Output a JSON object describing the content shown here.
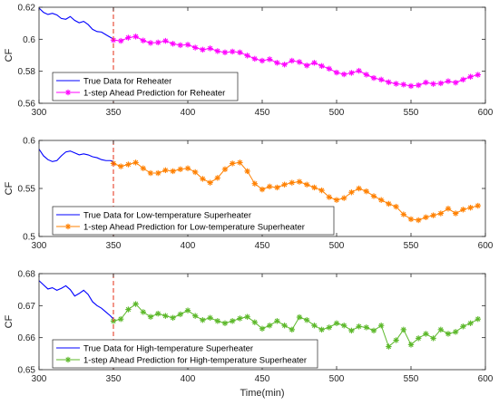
{
  "chart_data": [
    {
      "type": "line",
      "xlabel": "",
      "ylabel": "CF",
      "xlim": [
        300,
        600
      ],
      "ylim": [
        0.56,
        0.62
      ],
      "xticks": [
        "300",
        "350",
        "400",
        "450",
        "500",
        "550",
        "600"
      ],
      "yticks": [
        "0.56",
        "0.58",
        "0.6",
        "0.62"
      ],
      "split_x": 350,
      "legend_position": "bottom-left",
      "series": [
        {
          "name": "True Data for Reheater",
          "color": "#0000ff",
          "marker": "none",
          "points": [
            [
              300,
              0.6195
            ],
            [
              303,
              0.6168
            ],
            [
              306,
              0.6155
            ],
            [
              309,
              0.6162
            ],
            [
              312,
              0.6152
            ],
            [
              315,
              0.613
            ],
            [
              318,
              0.6125
            ],
            [
              321,
              0.6142
            ],
            [
              324,
              0.6118
            ],
            [
              327,
              0.6103
            ],
            [
              330,
              0.6112
            ],
            [
              333,
              0.6092
            ],
            [
              336,
              0.6062
            ],
            [
              339,
              0.6048
            ],
            [
              342,
              0.6045
            ],
            [
              345,
              0.6028
            ],
            [
              348,
              0.6012
            ],
            [
              350,
              0.6002
            ]
          ]
        },
        {
          "name": "1-step Ahead Prediction for Reheater",
          "color": "#ff00ff",
          "marker": "asterisk",
          "points": [
            [
              350,
              0.5995
            ],
            [
              355,
              0.599
            ],
            [
              360,
              0.601
            ],
            [
              365,
              0.6017
            ],
            [
              370,
              0.5992
            ],
            [
              375,
              0.5977
            ],
            [
              380,
              0.598
            ],
            [
              385,
              0.599
            ],
            [
              390,
              0.5972
            ],
            [
              395,
              0.5963
            ],
            [
              400,
              0.5966
            ],
            [
              405,
              0.5948
            ],
            [
              410,
              0.5935
            ],
            [
              415,
              0.5943
            ],
            [
              420,
              0.5926
            ],
            [
              425,
              0.5918
            ],
            [
              430,
              0.5923
            ],
            [
              435,
              0.5918
            ],
            [
              440,
              0.5898
            ],
            [
              445,
              0.5878
            ],
            [
              450,
              0.5866
            ],
            [
              455,
              0.5875
            ],
            [
              460,
              0.5853
            ],
            [
              465,
              0.5842
            ],
            [
              470,
              0.5866
            ],
            [
              475,
              0.5858
            ],
            [
              480,
              0.5836
            ],
            [
              485,
              0.5853
            ],
            [
              490,
              0.5833
            ],
            [
              495,
              0.5816
            ],
            [
              500,
              0.5792
            ],
            [
              505,
              0.5781
            ],
            [
              510,
              0.579
            ],
            [
              515,
              0.5803
            ],
            [
              520,
              0.5779
            ],
            [
              525,
              0.5758
            ],
            [
              530,
              0.5748
            ],
            [
              535,
              0.5732
            ],
            [
              540,
              0.5722
            ],
            [
              545,
              0.5717
            ],
            [
              550,
              0.5708
            ],
            [
              555,
              0.5713
            ],
            [
              560,
              0.573
            ],
            [
              565,
              0.5721
            ],
            [
              570,
              0.5725
            ],
            [
              575,
              0.5738
            ],
            [
              580,
              0.5729
            ],
            [
              585,
              0.5748
            ],
            [
              590,
              0.5766
            ],
            [
              595,
              0.5778
            ]
          ]
        }
      ]
    },
    {
      "type": "line",
      "xlabel": "",
      "ylabel": "CF",
      "xlim": [
        300,
        600
      ],
      "ylim": [
        0.5,
        0.6
      ],
      "xticks": [
        "300",
        "350",
        "400",
        "450",
        "500",
        "550",
        "600"
      ],
      "yticks": [
        "0.5",
        "0.55",
        "0.6"
      ],
      "split_x": 350,
      "legend_position": "bottom-left",
      "series": [
        {
          "name": "True Data for Low-temperature Superheater",
          "color": "#0000ff",
          "marker": "none",
          "points": [
            [
              300,
              0.591
            ],
            [
              303,
              0.584
            ],
            [
              306,
              0.58
            ],
            [
              309,
              0.578
            ],
            [
              312,
              0.579
            ],
            [
              315,
              0.584
            ],
            [
              318,
              0.588
            ],
            [
              321,
              0.589
            ],
            [
              324,
              0.587
            ],
            [
              327,
              0.585
            ],
            [
              330,
              0.586
            ],
            [
              333,
              0.585
            ],
            [
              336,
              0.583
            ],
            [
              339,
              0.582
            ],
            [
              342,
              0.58
            ],
            [
              345,
              0.579
            ],
            [
              348,
              0.579
            ],
            [
              350,
              0.578
            ]
          ]
        },
        {
          "name": "1-step Ahead Prediction for Low-temperature Superheater",
          "color": "#ff8000",
          "marker": "asterisk",
          "points": [
            [
              350,
              0.576
            ],
            [
              355,
              0.573
            ],
            [
              360,
              0.575
            ],
            [
              365,
              0.577
            ],
            [
              370,
              0.571
            ],
            [
              375,
              0.566
            ],
            [
              380,
              0.566
            ],
            [
              385,
              0.569
            ],
            [
              390,
              0.568
            ],
            [
              395,
              0.57
            ],
            [
              400,
              0.571
            ],
            [
              405,
              0.567
            ],
            [
              410,
              0.56
            ],
            [
              415,
              0.556
            ],
            [
              420,
              0.561
            ],
            [
              425,
              0.57
            ],
            [
              430,
              0.576
            ],
            [
              435,
              0.577
            ],
            [
              440,
              0.568
            ],
            [
              445,
              0.555
            ],
            [
              450,
              0.549
            ],
            [
              455,
              0.552
            ],
            [
              460,
              0.551
            ],
            [
              465,
              0.554
            ],
            [
              470,
              0.556
            ],
            [
              475,
              0.557
            ],
            [
              480,
              0.554
            ],
            [
              485,
              0.551
            ],
            [
              490,
              0.548
            ],
            [
              495,
              0.541
            ],
            [
              500,
              0.538
            ],
            [
              505,
              0.54
            ],
            [
              510,
              0.546
            ],
            [
              515,
              0.55
            ],
            [
              520,
              0.547
            ],
            [
              525,
              0.542
            ],
            [
              530,
              0.538
            ],
            [
              535,
              0.534
            ],
            [
              540,
              0.531
            ],
            [
              545,
              0.523
            ],
            [
              550,
              0.518
            ],
            [
              555,
              0.517
            ],
            [
              560,
              0.52
            ],
            [
              565,
              0.522
            ],
            [
              570,
              0.524
            ],
            [
              575,
              0.529
            ],
            [
              580,
              0.524
            ],
            [
              585,
              0.528
            ],
            [
              590,
              0.53
            ],
            [
              595,
              0.532
            ]
          ]
        }
      ]
    },
    {
      "type": "line",
      "xlabel": "Time(min)",
      "ylabel": "CF",
      "xlim": [
        300,
        600
      ],
      "ylim": [
        0.65,
        0.68
      ],
      "xticks": [
        "300",
        "350",
        "400",
        "450",
        "500",
        "550",
        "600"
      ],
      "yticks": [
        "0.65",
        "0.66",
        "0.67",
        "0.68"
      ],
      "split_x": 350,
      "legend_position": "bottom-left",
      "series": [
        {
          "name": "True Data for High-temperature Superheater",
          "color": "#0000ff",
          "marker": "none",
          "points": [
            [
              300,
              0.6778
            ],
            [
              303,
              0.6765
            ],
            [
              306,
              0.6752
            ],
            [
              309,
              0.6756
            ],
            [
              312,
              0.6748
            ],
            [
              315,
              0.6754
            ],
            [
              318,
              0.6762
            ],
            [
              321,
              0.675
            ],
            [
              324,
              0.673
            ],
            [
              327,
              0.6738
            ],
            [
              330,
              0.6748
            ],
            [
              333,
              0.6735
            ],
            [
              336,
              0.6712
            ],
            [
              339,
              0.67
            ],
            [
              342,
              0.6692
            ],
            [
              345,
              0.668
            ],
            [
              348,
              0.6668
            ],
            [
              350,
              0.6658
            ]
          ]
        },
        {
          "name": "1-step Ahead Prediction for High-temperature Superheater",
          "color": "#5cb82a",
          "marker": "asterisk",
          "points": [
            [
              350,
              0.6652
            ],
            [
              355,
              0.6658
            ],
            [
              360,
              0.6688
            ],
            [
              365,
              0.6705
            ],
            [
              370,
              0.668
            ],
            [
              375,
              0.6665
            ],
            [
              380,
              0.6675
            ],
            [
              385,
              0.6668
            ],
            [
              390,
              0.6662
            ],
            [
              395,
              0.6673
            ],
            [
              400,
              0.6685
            ],
            [
              405,
              0.6668
            ],
            [
              410,
              0.6655
            ],
            [
              415,
              0.6662
            ],
            [
              420,
              0.6652
            ],
            [
              425,
              0.6645
            ],
            [
              430,
              0.6652
            ],
            [
              435,
              0.666
            ],
            [
              440,
              0.6665
            ],
            [
              445,
              0.6648
            ],
            [
              450,
              0.6628
            ],
            [
              455,
              0.6638
            ],
            [
              460,
              0.6652
            ],
            [
              465,
              0.6638
            ],
            [
              470,
              0.6625
            ],
            [
              475,
              0.6664
            ],
            [
              480,
              0.6655
            ],
            [
              485,
              0.6638
            ],
            [
              490,
              0.6625
            ],
            [
              495,
              0.6632
            ],
            [
              500,
              0.6645
            ],
            [
              505,
              0.6638
            ],
            [
              510,
              0.6622
            ],
            [
              515,
              0.6635
            ],
            [
              520,
              0.6632
            ],
            [
              525,
              0.6622
            ],
            [
              530,
              0.6638
            ],
            [
              535,
              0.6572
            ],
            [
              540,
              0.6592
            ],
            [
              545,
              0.6625
            ],
            [
              550,
              0.6578
            ],
            [
              555,
              0.6598
            ],
            [
              560,
              0.6612
            ],
            [
              565,
              0.6598
            ],
            [
              570,
              0.6625
            ],
            [
              575,
              0.6612
            ],
            [
              580,
              0.6618
            ],
            [
              585,
              0.6635
            ],
            [
              590,
              0.6645
            ],
            [
              595,
              0.6658
            ]
          ]
        }
      ]
    }
  ]
}
